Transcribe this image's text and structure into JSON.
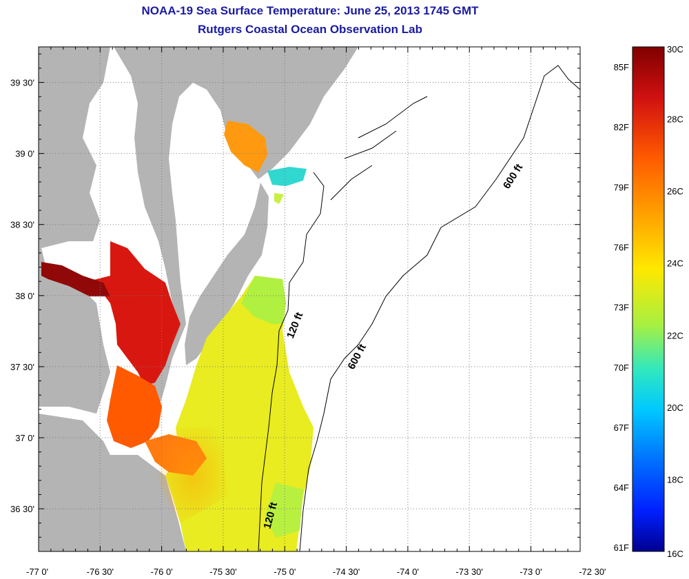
{
  "header": {
    "title": "NOAA-19 Sea Surface Temperature:  June 25, 2013 1745 GMT",
    "subtitle": "Rutgers Coastal Ocean Observation Lab"
  },
  "map": {
    "lon_range": [
      -77.0,
      -72.6
    ],
    "lat_range": [
      36.2,
      39.75
    ],
    "lon_ticks": [
      {
        "value": -77.0,
        "label": "-77 0'"
      },
      {
        "value": -76.5,
        "label": "-76 30'"
      },
      {
        "value": -76.0,
        "label": "-76 0'"
      },
      {
        "value": -75.5,
        "label": "-75 30'"
      },
      {
        "value": -75.0,
        "label": "-75 0'"
      },
      {
        "value": -74.5,
        "label": "-74 30'"
      },
      {
        "value": -74.0,
        "label": "-74 0'"
      },
      {
        "value": -73.5,
        "label": "-73 30'"
      },
      {
        "value": -73.0,
        "label": "-73 0'"
      },
      {
        "value": -72.5,
        "label": "-72 30'"
      }
    ],
    "lat_ticks": [
      {
        "value": 39.5,
        "label": "39 30'"
      },
      {
        "value": 39.0,
        "label": "39 0'"
      },
      {
        "value": 38.5,
        "label": "38 30'"
      },
      {
        "value": 38.0,
        "label": "38 0'"
      },
      {
        "value": 37.5,
        "label": "37 30'"
      },
      {
        "value": 37.0,
        "label": "37 0'"
      },
      {
        "value": 36.5,
        "label": "36 30'"
      }
    ],
    "contour_labels": {
      "c120_upper": "120 ft",
      "c120_lower": "120 ft",
      "c600_lower": "600 ft",
      "c600_upper": "600 ft"
    },
    "colors": {
      "land": "#b4b4b4",
      "no_data": "#ffffff",
      "grid": "#7a7a7a"
    }
  },
  "colorbar": {
    "min_c": 16,
    "max_c": 30,
    "celsius_labels": [
      "30C",
      "28C",
      "26C",
      "24C",
      "22C",
      "20C",
      "18C",
      "16C"
    ],
    "fahrenheit_labels": [
      "85F",
      "82F",
      "79F",
      "76F",
      "73F",
      "70F",
      "67F",
      "64F",
      "61F"
    ],
    "gradient": [
      "#800000",
      "#d01010",
      "#ff5a00",
      "#ffa000",
      "#ffe800",
      "#a8f040",
      "#30e8c0",
      "#00c8ff",
      "#0070ff",
      "#0020ff",
      "#000090"
    ]
  }
}
